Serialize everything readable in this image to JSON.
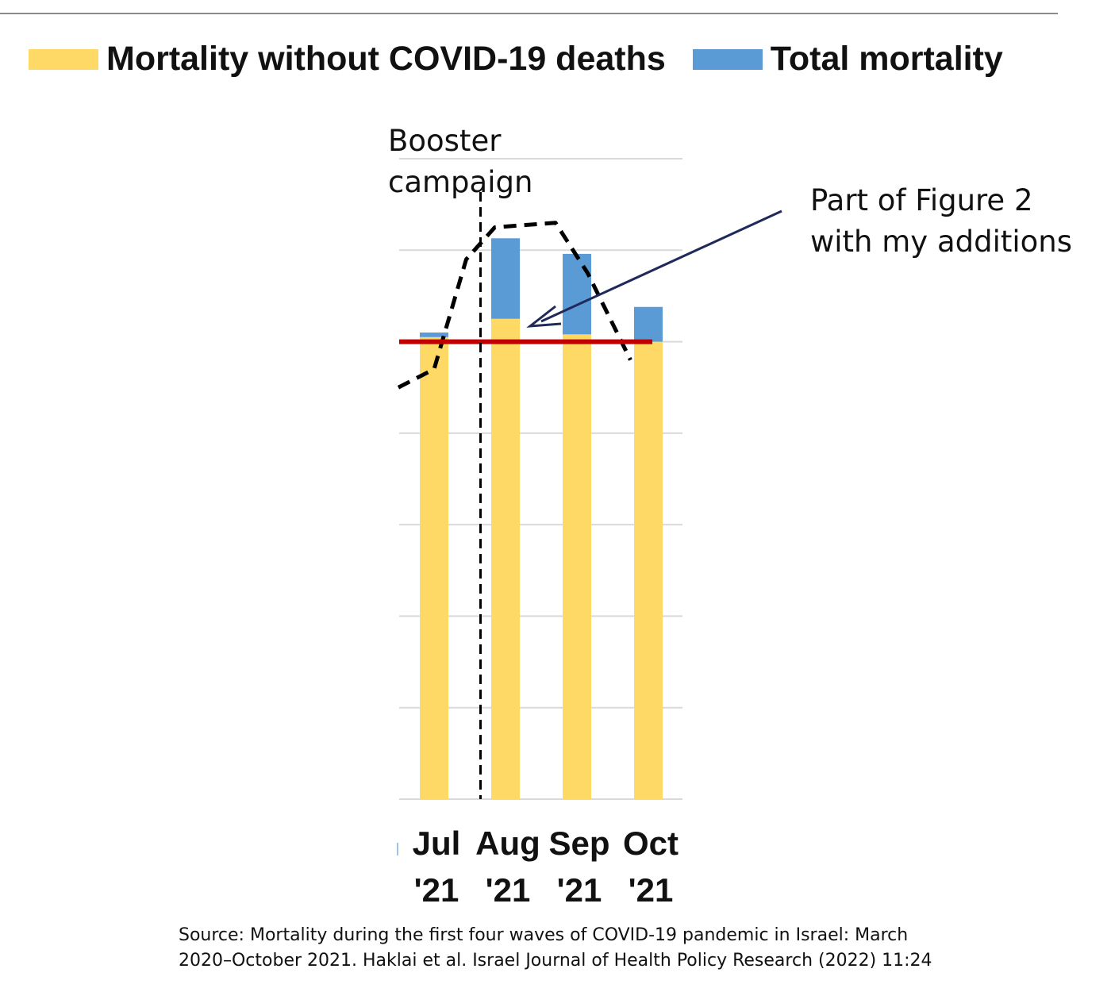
{
  "chart_data": {
    "type": "bar",
    "stacked": true,
    "categories": [
      "Jul '21",
      "Aug '21",
      "Sep '21",
      "Oct '21"
    ],
    "category_lines": [
      [
        "Jul",
        "'21"
      ],
      [
        "Aug",
        "'21"
      ],
      [
        "Sep",
        "'21"
      ],
      [
        "Oct",
        "'21"
      ]
    ],
    "series": [
      {
        "name": "Mortality without COVID-19 deaths",
        "values": [
          5.05,
          5.25,
          5.08,
          5.0
        ],
        "color": "#FFD966"
      },
      {
        "name": "Total mortality",
        "values": [
          0.05,
          0.88,
          0.88,
          0.38
        ],
        "color": "#5B9BD5"
      }
    ],
    "ylim": [
      0,
      7
    ],
    "grid": true,
    "legend_position": "top",
    "title": "",
    "xlabel": "",
    "ylabel": "",
    "annotations": {
      "booster_label_lines": [
        "Booster",
        "campaign"
      ],
      "note_lines": [
        "Part of Figure 2",
        "with my additions"
      ],
      "reference_line_value": 5.0,
      "reference_line_color": "#C00000",
      "dashed_trend": [
        [
          -0.5,
          4.5
        ],
        [
          0.0,
          4.7
        ],
        [
          0.45,
          5.9
        ],
        [
          0.85,
          6.25
        ],
        [
          1.7,
          6.3
        ],
        [
          2.15,
          5.75
        ],
        [
          2.75,
          4.8
        ]
      ],
      "booster_x": 0.65
    },
    "source_lines": [
      "Source: Mortality during the first four waves of COVID-19 pandemic in Israel: March",
      "2020–October 2021. Haklai et al. Israel Journal of Health Policy Research (2022) 11:24"
    ]
  }
}
